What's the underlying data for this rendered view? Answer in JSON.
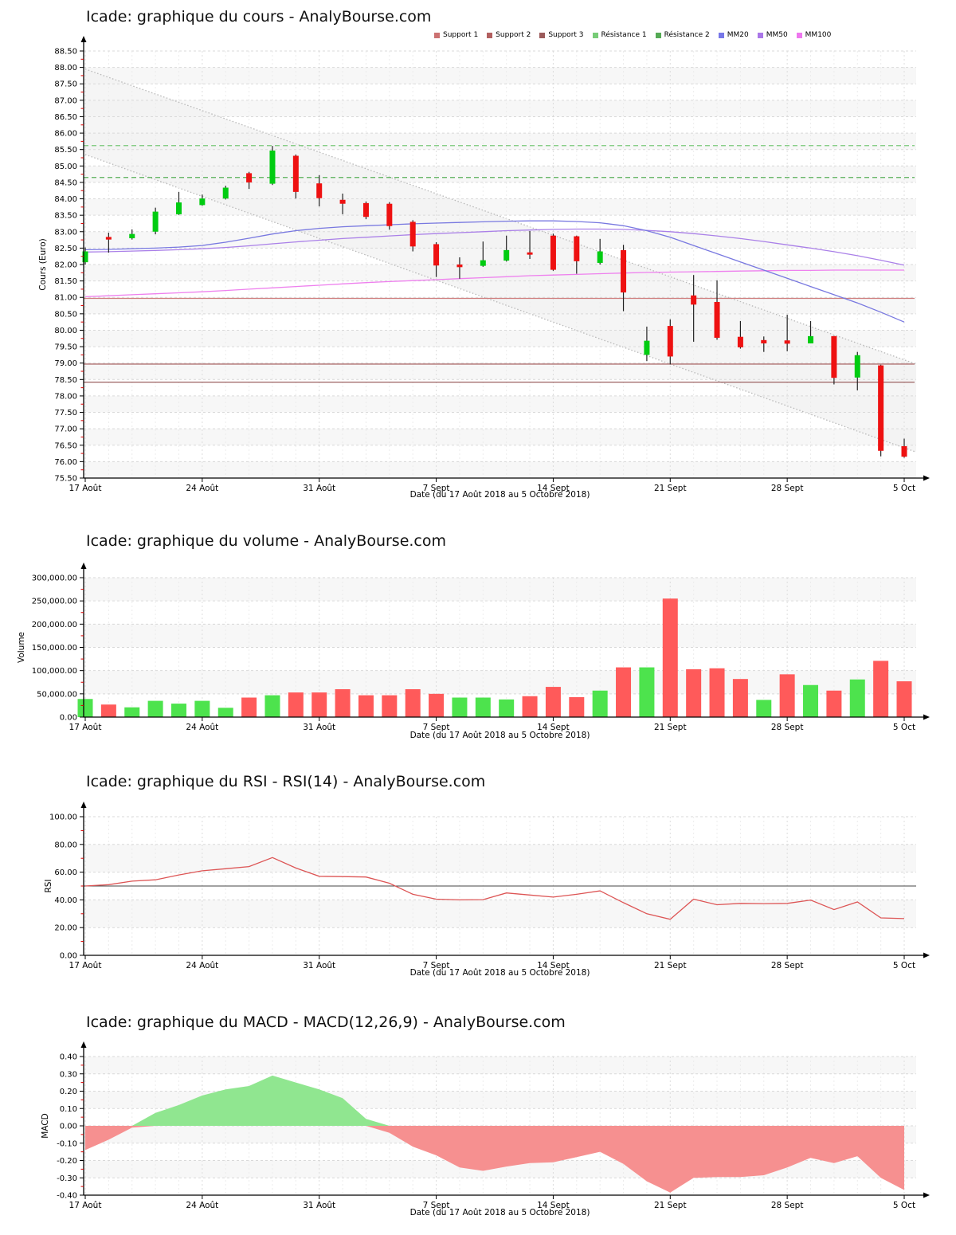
{
  "x_axis": {
    "tick_labels": [
      "17 Août",
      "24 Août",
      "31 Août",
      "7 Sept",
      "14 Sept",
      "21 Sept",
      "28 Sept",
      "5 Oct"
    ],
    "tick_days": [
      0,
      5,
      10,
      15,
      20,
      25,
      30,
      35
    ],
    "caption": "Date (du 17 Août 2018 au 5 Octobre 2018)"
  },
  "legend": {
    "items": [
      {
        "label": "Support 1",
        "color": "#cc7272"
      },
      {
        "label": "Support 2",
        "color": "#b26060"
      },
      {
        "label": "Support 3",
        "color": "#9b5a5a"
      },
      {
        "label": "Résistance 1",
        "color": "#77cc77"
      },
      {
        "label": "Résistance 2",
        "color": "#55aa55"
      },
      {
        "label": "MM20",
        "color": "#7777e8"
      },
      {
        "label": "MM50",
        "color": "#aa77e8"
      },
      {
        "label": "MM100",
        "color": "#ee77ee"
      }
    ]
  },
  "colors": {
    "candle_up": "#00cc11",
    "candle_down": "#ee1111",
    "wick": "#222222",
    "volume_up": "#4de34d",
    "volume_down": "#ff5a5a",
    "rsi_line": "#dd5555",
    "rsi_midline": "#444444",
    "macd_pos": "#90e690",
    "macd_neg": "#f69090",
    "mm20": "#7878e0",
    "mm50": "#aa80e8",
    "mm100": "#ee80ee",
    "support1": "#d08080",
    "support2": "#b07070",
    "support3": "#9a6060",
    "resistance1": "#7ac87a",
    "resistance2": "#58b058",
    "channel_line": "#b8b8b8",
    "channel_fill": "#f1f1f1",
    "zebra": "#f7f7f7",
    "grid_h": "#d9d9d9",
    "grid_v": "#ececec",
    "grid_v_week": "#dddddd",
    "minor_tick": "#dd0000"
  },
  "chart_data": [
    {
      "type": "candlestick",
      "title": "Icade: graphique du cours - AnalyBourse.com",
      "ylabel": "Cours (Euro)",
      "ylim": [
        75.5,
        88.5
      ],
      "ystep": 0.5,
      "yformat": "price",
      "dates": [
        "2018-08-17",
        "2018-08-20",
        "2018-08-21",
        "2018-08-22",
        "2018-08-23",
        "2018-08-24",
        "2018-08-27",
        "2018-08-28",
        "2018-08-29",
        "2018-08-30",
        "2018-08-31",
        "2018-09-03",
        "2018-09-04",
        "2018-09-05",
        "2018-09-06",
        "2018-09-07",
        "2018-09-10",
        "2018-09-11",
        "2018-09-12",
        "2018-09-13",
        "2018-09-14",
        "2018-09-17",
        "2018-09-18",
        "2018-09-19",
        "2018-09-20",
        "2018-09-21",
        "2018-09-24",
        "2018-09-25",
        "2018-09-26",
        "2018-09-27",
        "2018-09-28",
        "2018-10-01",
        "2018-10-02",
        "2018-10-03",
        "2018-10-04",
        "2018-10-05"
      ],
      "ohlc": [
        [
          82.07,
          82.52,
          82.0,
          82.4
        ],
        [
          82.84,
          82.97,
          82.36,
          82.76
        ],
        [
          82.8,
          83.07,
          82.76,
          82.93
        ],
        [
          83.0,
          83.73,
          82.92,
          83.61
        ],
        [
          83.53,
          84.21,
          83.51,
          83.89
        ],
        [
          83.81,
          84.13,
          83.79,
          84.01
        ],
        [
          84.01,
          84.4,
          83.98,
          84.34
        ],
        [
          84.78,
          84.82,
          84.3,
          84.5
        ],
        [
          84.46,
          85.61,
          84.42,
          85.47
        ],
        [
          85.31,
          85.35,
          84.01,
          84.21
        ],
        [
          84.47,
          84.72,
          83.77,
          84.02
        ],
        [
          83.97,
          84.16,
          83.53,
          83.85
        ],
        [
          83.87,
          83.92,
          83.38,
          83.45
        ],
        [
          83.85,
          83.9,
          83.06,
          83.17
        ],
        [
          83.3,
          83.35,
          82.4,
          82.55
        ],
        [
          82.62,
          82.68,
          81.62,
          81.97
        ],
        [
          82.0,
          82.22,
          81.57,
          81.92
        ],
        [
          81.96,
          82.7,
          81.93,
          82.13
        ],
        [
          82.12,
          82.88,
          82.09,
          82.44
        ],
        [
          82.37,
          83.02,
          82.17,
          82.3
        ],
        [
          82.88,
          82.94,
          81.81,
          81.84
        ],
        [
          82.86,
          82.88,
          81.72,
          82.1
        ],
        [
          82.05,
          82.78,
          82.0,
          82.4
        ],
        [
          82.44,
          82.6,
          80.58,
          81.15
        ],
        [
          79.25,
          80.11,
          79.06,
          79.68
        ],
        [
          80.13,
          80.33,
          78.96,
          79.2
        ],
        [
          81.06,
          81.68,
          79.65,
          80.78
        ],
        [
          80.86,
          81.52,
          79.71,
          79.77
        ],
        [
          79.8,
          80.28,
          79.44,
          79.48
        ],
        [
          79.7,
          79.81,
          79.34,
          79.6
        ],
        [
          79.69,
          80.47,
          79.36,
          79.59
        ],
        [
          79.6,
          80.28,
          79.6,
          79.82
        ],
        [
          79.82,
          79.83,
          78.35,
          78.55
        ],
        [
          78.56,
          79.34,
          78.17,
          79.24
        ],
        [
          78.93,
          78.95,
          76.16,
          76.33
        ],
        [
          76.47,
          76.7,
          76.12,
          76.15
        ]
      ],
      "mm20": [
        82.45,
        82.46,
        82.48,
        82.5,
        82.53,
        82.58,
        82.68,
        82.8,
        82.93,
        83.03,
        83.1,
        83.15,
        83.18,
        83.21,
        83.24,
        83.26,
        83.28,
        83.3,
        83.32,
        83.33,
        83.33,
        83.31,
        83.27,
        83.18,
        83.03,
        82.83,
        82.58,
        82.33,
        82.08,
        81.83,
        81.58,
        81.33,
        81.08,
        80.83,
        80.55,
        80.25
      ],
      "mm50": [
        82.38,
        82.39,
        82.41,
        82.43,
        82.45,
        82.48,
        82.52,
        82.57,
        82.63,
        82.69,
        82.74,
        82.79,
        82.83,
        82.87,
        82.91,
        82.94,
        82.97,
        83.0,
        83.03,
        83.05,
        83.07,
        83.08,
        83.08,
        83.07,
        83.04,
        83.0,
        82.94,
        82.87,
        82.79,
        82.7,
        82.6,
        82.5,
        82.39,
        82.27,
        82.13,
        81.98
      ],
      "mm100": [
        81.02,
        81.05,
        81.08,
        81.11,
        81.14,
        81.17,
        81.21,
        81.25,
        81.29,
        81.33,
        81.37,
        81.41,
        81.45,
        81.48,
        81.51,
        81.54,
        81.57,
        81.6,
        81.63,
        81.66,
        81.68,
        81.7,
        81.72,
        81.74,
        81.76,
        81.77,
        81.78,
        81.79,
        81.8,
        81.81,
        81.82,
        81.82,
        81.83,
        81.83,
        81.83,
        81.83
      ],
      "supports": [
        {
          "name": "Support 1",
          "value": 80.97
        },
        {
          "name": "Support 2",
          "value": 78.97
        },
        {
          "name": "Support 3",
          "value": 78.42
        }
      ],
      "resistances": [
        {
          "name": "Résistance 1",
          "value": 85.62
        },
        {
          "name": "Résistance 2",
          "value": 84.65
        }
      ],
      "channel": {
        "upper": [
          87.95,
          78.97
        ],
        "lower": [
          85.35,
          76.29
        ]
      }
    },
    {
      "type": "bar",
      "title": "Icade: graphique du volume - AnalyBourse.com",
      "ylabel": "Volume",
      "ylim": [
        0,
        300000
      ],
      "ystep": 50000,
      "yformat": "volume",
      "values": [
        39000,
        27000,
        21000,
        35000,
        29000,
        35000,
        20000,
        42000,
        47000,
        53000,
        53000,
        60000,
        47000,
        47000,
        60000,
        50000,
        42000,
        42000,
        38000,
        45000,
        65000,
        43000,
        57000,
        107000,
        107000,
        255000,
        103000,
        105000,
        82000,
        37000,
        92000,
        69000,
        57000,
        81000,
        121000,
        77000
      ],
      "directions": [
        "g",
        "r",
        "g",
        "g",
        "g",
        "g",
        "g",
        "r",
        "g",
        "r",
        "r",
        "r",
        "r",
        "r",
        "r",
        "r",
        "g",
        "g",
        "g",
        "r",
        "r",
        "r",
        "g",
        "r",
        "g",
        "r",
        "r",
        "r",
        "r",
        "g",
        "r",
        "g",
        "r",
        "g",
        "r",
        "r"
      ]
    },
    {
      "type": "line",
      "title": "Icade: graphique du RSI - RSI(14) - AnalyBourse.com",
      "ylabel": "RSI",
      "ylim": [
        0,
        100
      ],
      "ystep": 20,
      "yformat": "plain2",
      "midline": 50,
      "values": [
        50,
        51,
        53.5,
        54.5,
        58,
        61,
        62.5,
        64,
        70.5,
        63,
        57,
        56.8,
        56.5,
        52,
        44,
        40.5,
        40,
        40.2,
        45,
        43.5,
        42,
        44,
        46.5,
        38,
        30,
        26,
        40.5,
        36.5,
        37.5,
        37.3,
        37.5,
        39.8,
        33,
        38.5,
        27,
        26.5
      ]
    },
    {
      "type": "area",
      "title": "Icade: graphique du MACD - MACD(12,26,9) - AnalyBourse.com",
      "ylabel": "MACD",
      "ylim": [
        -0.4,
        0.4
      ],
      "ystep": 0.1,
      "yformat": "plain2",
      "values": [
        -0.14,
        -0.08,
        -0.01,
        0.075,
        0.12,
        0.175,
        0.21,
        0.23,
        0.29,
        0.25,
        0.21,
        0.16,
        0.04,
        -0.04,
        -0.12,
        -0.17,
        -0.24,
        -0.26,
        -0.235,
        -0.215,
        -0.21,
        -0.18,
        -0.15,
        -0.22,
        -0.32,
        -0.385,
        -0.3,
        -0.295,
        -0.295,
        -0.285,
        -0.24,
        -0.185,
        -0.215,
        -0.175,
        -0.3,
        -0.37
      ]
    }
  ]
}
